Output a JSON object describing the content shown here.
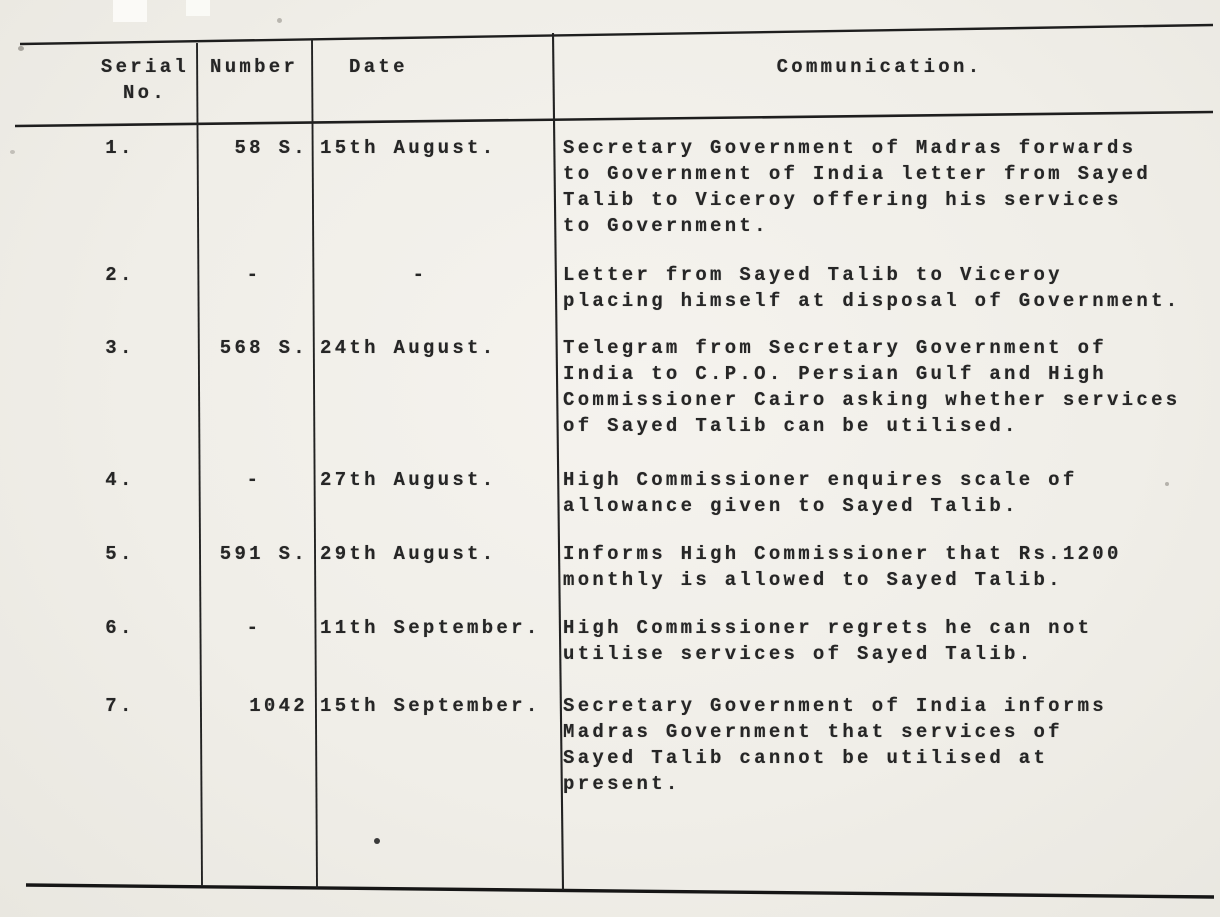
{
  "document": {
    "kind": "scanned typewritten index of communications",
    "paper_color": "#f0eee8",
    "ink_color": "#262626"
  },
  "table": {
    "header": {
      "serial_line1": "Serial",
      "serial_line2": "No.",
      "number": "Number",
      "date": "Date",
      "communication": "Communication."
    },
    "rows": [
      {
        "serial": "1.",
        "number": "58 S.",
        "date": "15th August.",
        "communication": [
          "Secretary Government of Madras forwards",
          "to Government of India letter from Sayed",
          "Talib to Viceroy offering his services",
          "to Government."
        ]
      },
      {
        "serial": "2.",
        "number": "-",
        "date": "-",
        "communication": [
          "Letter from Sayed Talib to Viceroy",
          "placing himself at disposal of Government."
        ]
      },
      {
        "serial": "3.",
        "number": "568 S.",
        "date": "24th August.",
        "communication": [
          "Telegram from Secretary Government of",
          "India to C.P.O. Persian Gulf and High",
          "Commissioner Cairo asking whether services",
          "of Sayed Talib can be utilised."
        ]
      },
      {
        "serial": "4.",
        "number": "-",
        "date": "27th August.",
        "communication": [
          "High Commissioner enquires scale of",
          "allowance given to Sayed Talib."
        ]
      },
      {
        "serial": "5.",
        "number": "591 S.",
        "date": "29th August.",
        "communication": [
          "Informs High Commissioner that Rs.1200",
          "monthly is allowed to Sayed Talib."
        ]
      },
      {
        "serial": "6.",
        "number": "-",
        "date": "11th September.",
        "communication": [
          "High Commissioner regrets he can not",
          "utilise services of Sayed Talib."
        ]
      },
      {
        "serial": "7.",
        "number": "1042",
        "date": "15th September.",
        "communication": [
          "Secretary Government of India informs",
          "Madras Government that services of",
          "Sayed Talib cannot be utilised at",
          "present."
        ]
      }
    ]
  }
}
